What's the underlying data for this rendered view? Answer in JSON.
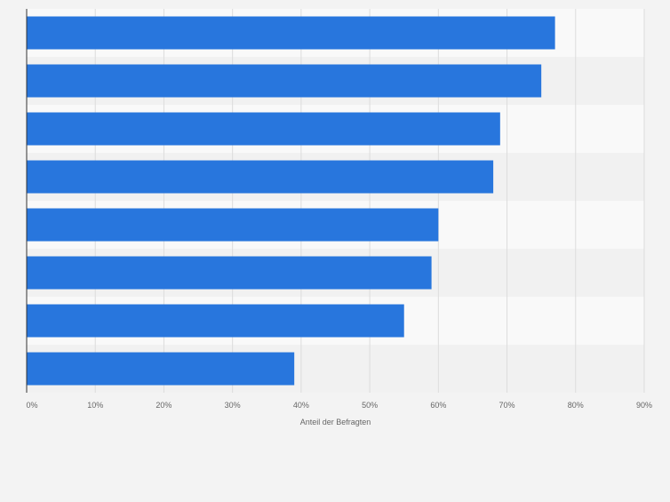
{
  "chart_data": {
    "type": "bar",
    "orientation": "horizontal",
    "title": "",
    "categories": [
      "",
      "",
      "",
      "",
      "",
      "",
      "",
      ""
    ],
    "values": [
      77,
      75,
      69,
      68,
      60,
      59,
      55,
      39
    ],
    "xlabel": "Anteil der Befragten",
    "ylabel": "",
    "xlim": [
      0,
      90
    ],
    "ticks": [
      0,
      10,
      20,
      30,
      40,
      50,
      60,
      70,
      80,
      90
    ],
    "tick_labels": [
      "0%",
      "10%",
      "20%",
      "30%",
      "40%",
      "50%",
      "60%",
      "70%",
      "80%",
      "90%"
    ],
    "grid": true,
    "colors": {
      "bar": "#2876dd",
      "background": "#f3f3f3",
      "band_light": "#f9f9f9",
      "band_dark": "#f1f1f1",
      "grid": "#dcdcdc",
      "axis": "#333333",
      "tick_text": "#666666"
    }
  }
}
